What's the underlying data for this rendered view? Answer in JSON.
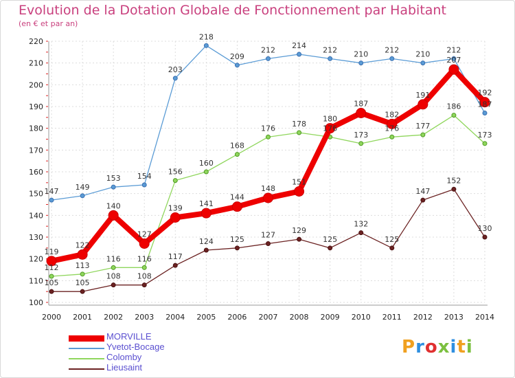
{
  "header": {
    "title": "Evolution de la Dotation Globale de Fonctionnement par Habitant",
    "subtitle": "(en € et par an)"
  },
  "logo": {
    "text": "Proxiti"
  },
  "chart_data": {
    "type": "line",
    "title": "Evolution de la Dotation Globale de Fonctionnement par Habitant",
    "subtitle": "(en € et par an)",
    "xlabel": "",
    "ylabel": "",
    "ylim": [
      100,
      220
    ],
    "yticks": [
      100,
      110,
      120,
      130,
      140,
      150,
      160,
      170,
      180,
      190,
      200,
      210,
      220
    ],
    "categories": [
      "2000",
      "2001",
      "2002",
      "2003",
      "2004",
      "2005",
      "2006",
      "2007",
      "2008",
      "2009",
      "2010",
      "2011",
      "2012",
      "2013",
      "2014"
    ],
    "grid": true,
    "legend_position": "bottom-left",
    "series": [
      {
        "name": "Yvetot-Bocage",
        "color": "#5a9bd5",
        "values": [
          147,
          149,
          153,
          154,
          203,
          218,
          209,
          212,
          214,
          212,
          210,
          212,
          210,
          212,
          187
        ]
      },
      {
        "name": "Colomby",
        "color": "#8fd65c",
        "values": [
          112,
          113,
          116,
          116,
          156,
          160,
          168,
          176,
          178,
          176,
          173,
          176,
          177,
          186,
          173
        ]
      },
      {
        "name": "Lieusaint",
        "color": "#6b2222",
        "values": [
          105,
          105,
          108,
          108,
          117,
          124,
          125,
          127,
          129,
          125,
          132,
          125,
          147,
          152,
          130
        ]
      },
      {
        "name": "MORVILLE",
        "color": "#ee0000",
        "values": [
          119,
          122,
          140,
          127,
          139,
          141,
          144,
          148,
          151,
          180,
          187,
          182,
          191,
          207,
          192
        ]
      }
    ]
  }
}
